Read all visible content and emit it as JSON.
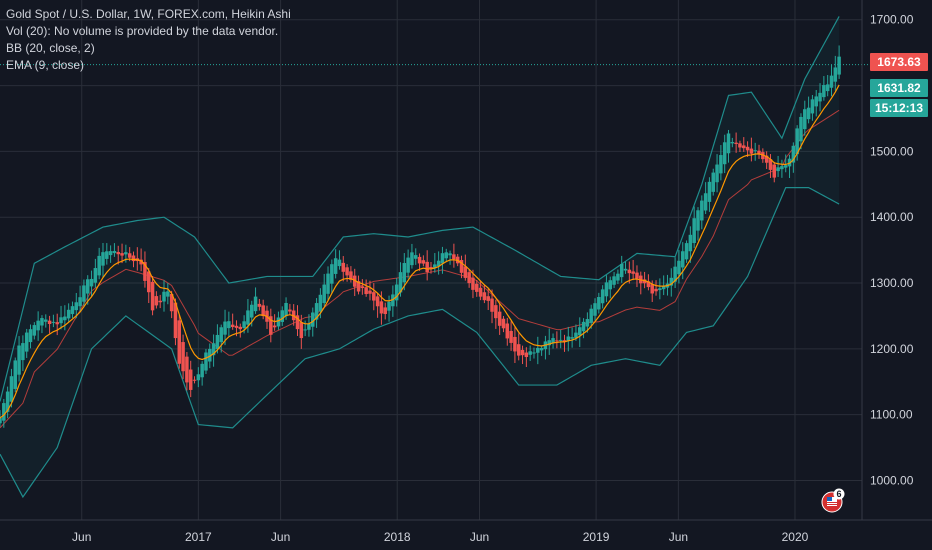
{
  "header": {
    "title": "Gold Spot / U.S. Dollar, 1W, FOREX.com, Heikin Ashi",
    "volume_note": "Vol (20): No volume is provided by the data vendor.",
    "bb_label": "BB (20, close, 2)",
    "ema_label": "EMA (9, close)"
  },
  "price_tags": {
    "current": "1673.63",
    "last": "1631.82",
    "timer": "15:12:13"
  },
  "badge": {
    "count": "6"
  },
  "colors": {
    "background": "#131722",
    "up": "#26a69a",
    "down": "#ef5350",
    "ema": "#ff9800",
    "bb_basis": "#b33d3b",
    "bb_band": "#1f8c8c",
    "grid": "#2a2e39",
    "axis_text": "#d1d4dc",
    "last_line": "#26a69a"
  },
  "chart_data": {
    "type": "candlestick",
    "chart_style": "Heikin Ashi",
    "interval": "1W",
    "symbol": "Gold Spot / U.S. Dollar",
    "exchange": "FOREX.com",
    "ylim": [
      940,
      1730
    ],
    "xlim": [
      "2016-01-03",
      "2020-05-03"
    ],
    "y_ticks": [
      "1700.00",
      "1600.00",
      "1500.00",
      "1400.00",
      "1300.00",
      "1200.00",
      "1100.00",
      "1000.00"
    ],
    "x_ticks": [
      {
        "label": "Jun",
        "date": "2016-06-01"
      },
      {
        "label": "2017",
        "date": "2017-01-01"
      },
      {
        "label": "Jun",
        "date": "2017-06-01"
      },
      {
        "label": "2018",
        "date": "2018-01-01"
      },
      {
        "label": "Jun",
        "date": "2018-06-01"
      },
      {
        "label": "2019",
        "date": "2019-01-01"
      },
      {
        "label": "Jun",
        "date": "2019-06-01"
      },
      {
        "label": "2020",
        "date": "2020-01-01"
      }
    ],
    "last_price": 1631.82,
    "current_price": 1673.63,
    "close_anchors": [
      [
        "2016-01-03",
        1095
      ],
      [
        "2016-02-07",
        1205
      ],
      [
        "2016-03-13",
        1245
      ],
      [
        "2016-04-17",
        1240
      ],
      [
        "2016-05-15",
        1265
      ],
      [
        "2016-06-19",
        1310
      ],
      [
        "2016-07-10",
        1350
      ],
      [
        "2016-08-14",
        1345
      ],
      [
        "2016-09-18",
        1330
      ],
      [
        "2016-10-09",
        1260
      ],
      [
        "2016-11-06",
        1290
      ],
      [
        "2016-11-27",
        1180
      ],
      [
        "2016-12-18",
        1135
      ],
      [
        "2017-01-15",
        1195
      ],
      [
        "2017-02-19",
        1240
      ],
      [
        "2017-03-19",
        1230
      ],
      [
        "2017-04-16",
        1280
      ],
      [
        "2017-05-14",
        1225
      ],
      [
        "2017-06-11",
        1265
      ],
      [
        "2017-07-09",
        1215
      ],
      [
        "2017-08-13",
        1285
      ],
      [
        "2017-09-10",
        1340
      ],
      [
        "2017-10-15",
        1295
      ],
      [
        "2017-11-12",
        1280
      ],
      [
        "2017-12-10",
        1250
      ],
      [
        "2018-01-07",
        1320
      ],
      [
        "2018-01-28",
        1345
      ],
      [
        "2018-02-25",
        1320
      ],
      [
        "2018-03-25",
        1345
      ],
      [
        "2018-04-15",
        1340
      ],
      [
        "2018-05-13",
        1300
      ],
      [
        "2018-06-17",
        1270
      ],
      [
        "2018-07-15",
        1230
      ],
      [
        "2018-08-12",
        1190
      ],
      [
        "2018-09-09",
        1195
      ],
      [
        "2018-10-14",
        1215
      ],
      [
        "2018-11-11",
        1215
      ],
      [
        "2018-12-16",
        1250
      ],
      [
        "2019-01-13",
        1290
      ],
      [
        "2019-02-17",
        1325
      ],
      [
        "2019-03-17",
        1305
      ],
      [
        "2019-04-14",
        1285
      ],
      [
        "2019-05-12",
        1295
      ],
      [
        "2019-06-09",
        1345
      ],
      [
        "2019-07-07",
        1410
      ],
      [
        "2019-08-04",
        1465
      ],
      [
        "2019-09-01",
        1525
      ],
      [
        "2019-09-29",
        1500
      ],
      [
        "2019-10-27",
        1500
      ],
      [
        "2019-11-24",
        1465
      ],
      [
        "2019-12-22",
        1490
      ],
      [
        "2020-01-12",
        1555
      ],
      [
        "2020-02-02",
        1575
      ],
      [
        "2020-03-01",
        1605
      ],
      [
        "2020-03-22",
        1640
      ]
    ],
    "bollinger": {
      "period": 20,
      "stddev": 2,
      "upper": [
        [
          "2016-01-03",
          1120
        ],
        [
          "2016-03-06",
          1330
        ],
        [
          "2016-05-01",
          1355
        ],
        [
          "2016-07-10",
          1385
        ],
        [
          "2016-09-11",
          1395
        ],
        [
          "2016-10-30",
          1400
        ],
        [
          "2016-12-25",
          1370
        ],
        [
          "2017-02-26",
          1300
        ],
        [
          "2017-05-07",
          1310
        ],
        [
          "2017-07-30",
          1310
        ],
        [
          "2017-09-24",
          1370
        ],
        [
          "2017-11-19",
          1375
        ],
        [
          "2018-01-21",
          1370
        ],
        [
          "2018-03-25",
          1380
        ],
        [
          "2018-05-20",
          1385
        ],
        [
          "2018-08-05",
          1350
        ],
        [
          "2018-10-28",
          1310
        ],
        [
          "2019-01-06",
          1305
        ],
        [
          "2019-03-17",
          1345
        ],
        [
          "2019-05-26",
          1340
        ],
        [
          "2019-07-14",
          1450
        ],
        [
          "2019-09-01",
          1585
        ],
        [
          "2019-10-13",
          1590
        ],
        [
          "2019-12-08",
          1520
        ],
        [
          "2020-01-19",
          1610
        ],
        [
          "2020-03-22",
          1705
        ]
      ],
      "lower": [
        [
          "2016-01-03",
          1040
        ],
        [
          "2016-02-14",
          975
        ],
        [
          "2016-04-17",
          1050
        ],
        [
          "2016-06-19",
          1200
        ],
        [
          "2016-08-21",
          1250
        ],
        [
          "2016-11-13",
          1200
        ],
        [
          "2017-01-01",
          1085
        ],
        [
          "2017-03-05",
          1080
        ],
        [
          "2017-05-07",
          1130
        ],
        [
          "2017-07-16",
          1185
        ],
        [
          "2017-09-17",
          1200
        ],
        [
          "2017-11-19",
          1230
        ],
        [
          "2018-01-21",
          1250
        ],
        [
          "2018-03-25",
          1260
        ],
        [
          "2018-05-27",
          1225
        ],
        [
          "2018-08-12",
          1145
        ],
        [
          "2018-10-21",
          1145
        ],
        [
          "2018-12-23",
          1175
        ],
        [
          "2019-02-24",
          1185
        ],
        [
          "2019-04-28",
          1175
        ],
        [
          "2019-06-16",
          1225
        ],
        [
          "2019-08-04",
          1235
        ],
        [
          "2019-10-06",
          1310
        ],
        [
          "2019-12-15",
          1445
        ],
        [
          "2020-01-26",
          1445
        ],
        [
          "2020-03-22",
          1420
        ]
      ]
    }
  }
}
